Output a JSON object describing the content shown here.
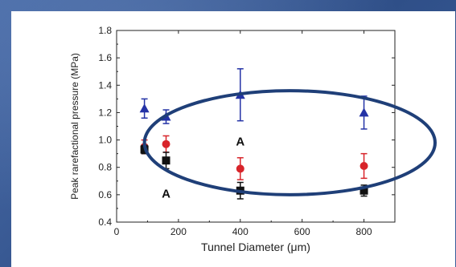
{
  "chart_data": {
    "type": "scatter",
    "xlabel": "Tunnel Diameter (μm)",
    "ylabel": "Peak rarefactional pressure (MPa)",
    "xlim": [
      0,
      900
    ],
    "ylim": [
      0.4,
      1.8
    ],
    "x_ticks": [
      0,
      200,
      400,
      600,
      800
    ],
    "y_ticks": [
      0.4,
      0.6,
      0.8,
      1.0,
      1.2,
      1.4,
      1.6,
      1.8
    ],
    "x_tick_labels": [
      "0",
      "200",
      "400",
      "600",
      "800"
    ],
    "y_tick_labels": [
      "0.4",
      "0.6",
      "0.8",
      "1.0",
      "1.2",
      "1.4",
      "1.6",
      "1.8"
    ],
    "grid": false,
    "series": [
      {
        "marker": "triangle",
        "color": "#2433a6",
        "points": [
          {
            "x": 90,
            "y": 1.23,
            "err": 0.07
          },
          {
            "x": 160,
            "y": 1.17,
            "err": 0.05
          },
          {
            "x": 400,
            "y": 1.33,
            "err": 0.19
          },
          {
            "x": 800,
            "y": 1.2,
            "err": 0.12
          }
        ]
      },
      {
        "marker": "circle",
        "color": "#d8242a",
        "points": [
          {
            "x": 90,
            "y": 0.95,
            "err": 0.05
          },
          {
            "x": 160,
            "y": 0.97,
            "err": 0.06
          },
          {
            "x": 400,
            "y": 0.79,
            "err": 0.08
          },
          {
            "x": 800,
            "y": 0.81,
            "err": 0.09
          }
        ]
      },
      {
        "marker": "square",
        "color": "#111111",
        "points": [
          {
            "x": 90,
            "y": 0.93,
            "err": 0.03
          },
          {
            "x": 160,
            "y": 0.85,
            "err": 0.06
          },
          {
            "x": 400,
            "y": 0.63,
            "err": 0.06
          },
          {
            "x": 800,
            "y": 0.63,
            "err": 0.04
          }
        ]
      }
    ],
    "annotations": [
      {
        "text": "A",
        "x": 400,
        "y": 0.96
      },
      {
        "text": "A",
        "x": 160,
        "y": 0.58
      }
    ],
    "highlight_ellipse": {
      "color": "#1f3f78",
      "cx": 560,
      "cy": 0.98,
      "rx": 470,
      "ry": 0.38
    }
  }
}
